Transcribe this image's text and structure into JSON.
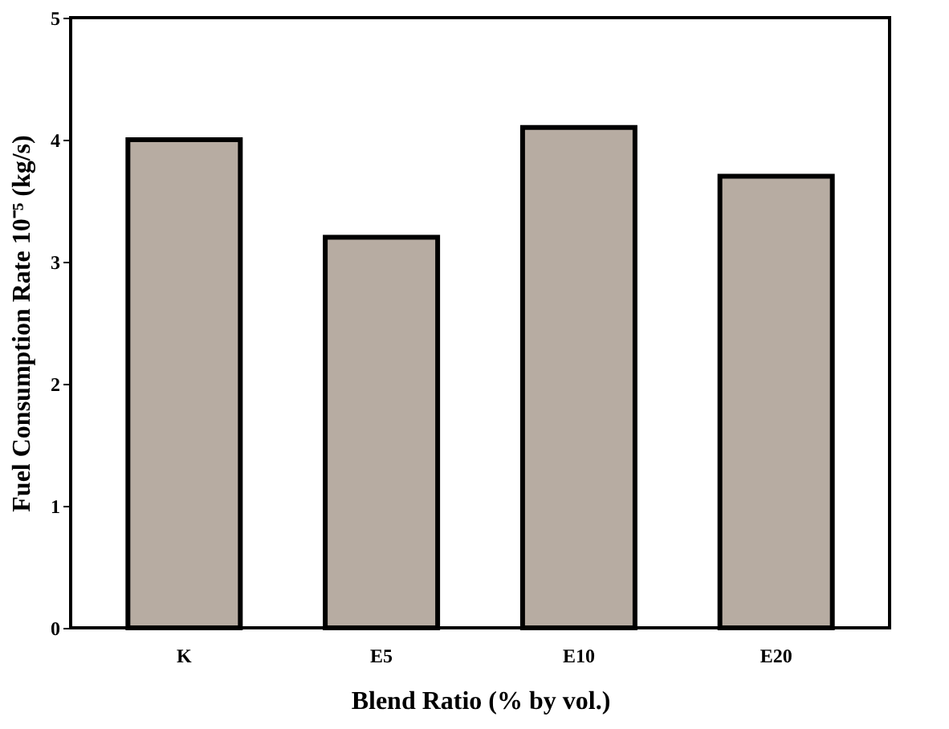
{
  "chart_data": {
    "type": "bar",
    "xlabel": "Blend Ratio (% by vol.)",
    "ylabel": "Fuel Consumption Rate  10⁻⁵ (kg/s)",
    "categories": [
      "K",
      "E5",
      "E10",
      "E20"
    ],
    "values": [
      4.0,
      3.2,
      4.1,
      3.7
    ],
    "color": "#b7aca2",
    "ylim": [
      0,
      5
    ],
    "yticks": [
      0,
      1,
      2,
      3,
      4,
      5
    ],
    "grid": false
  }
}
